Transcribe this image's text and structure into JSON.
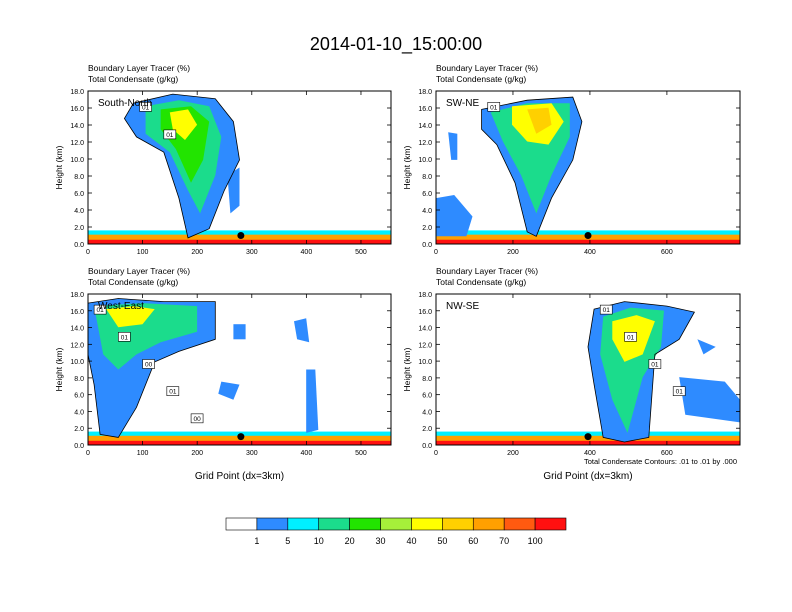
{
  "title": "2014-01-10_15:00:00",
  "colors": {
    "scale": [
      "#ffffff",
      "#2e8bff",
      "#00f0ff",
      "#1bdc8c",
      "#22e400",
      "#a6f03a",
      "#ffff00",
      "#ffd000",
      "#ffa000",
      "#ff5a10",
      "#ff1010"
    ],
    "contour": "#000000"
  },
  "colorbar": {
    "labels": [
      "1",
      "5",
      "10",
      "20",
      "30",
      "40",
      "50",
      "60",
      "70",
      "100"
    ]
  },
  "footnote": "Total Condensate Contours: .01 to .01 by .000",
  "chart_data": [
    {
      "type": "heatmap",
      "cross_section": "South-North",
      "subtitle_1": "Boundary Layer Tracer   (%)",
      "subtitle_2": "Total Condensate   (g/kg)",
      "ylabel": "Height (km)",
      "xlabel": "",
      "xlim": [
        0,
        555
      ],
      "ylim": [
        0,
        18
      ],
      "xticks": [
        0,
        100,
        200,
        300,
        400,
        500
      ],
      "yticks": [
        "0.0",
        "2.0",
        "4.0",
        "6.0",
        "8.0",
        "10.0",
        "12.0",
        "14.0",
        "16.0",
        "18.0"
      ],
      "contour_labels": [
        "01",
        "01"
      ],
      "marker": {
        "x": 280,
        "y": 1.0
      }
    },
    {
      "type": "heatmap",
      "cross_section": "SW-NE",
      "subtitle_1": "Boundary Layer Tracer   (%)",
      "subtitle_2": "Total Condensate   (g/kg)",
      "ylabel": "Height (km)",
      "xlabel": "",
      "xlim": [
        0,
        790
      ],
      "ylim": [
        0,
        18
      ],
      "xticks": [
        0,
        200,
        400,
        600
      ],
      "yticks": [
        "0.0",
        "2.0",
        "4.0",
        "6.0",
        "8.0",
        "10.0",
        "12.0",
        "14.0",
        "16.0",
        "18.0"
      ],
      "contour_labels": [
        "01"
      ],
      "marker": {
        "x": 395,
        "y": 1.0
      }
    },
    {
      "type": "heatmap",
      "cross_section": "West-East",
      "subtitle_1": "Boundary Layer Tracer   (%)",
      "subtitle_2": "Total Condensate   (g/kg)",
      "ylabel": "Height (km)",
      "xlabel": "Grid Point (dx=3km)",
      "xlim": [
        0,
        555
      ],
      "ylim": [
        0,
        18
      ],
      "xticks": [
        0,
        100,
        200,
        300,
        400,
        500
      ],
      "yticks": [
        "0.0",
        "2.0",
        "4.0",
        "6.0",
        "8.0",
        "10.0",
        "12.0",
        "14.0",
        "16.0",
        "18.0"
      ],
      "contour_labels": [
        "01",
        "01",
        "00",
        "01",
        "00"
      ],
      "marker": {
        "x": 280,
        "y": 1.0
      }
    },
    {
      "type": "heatmap",
      "cross_section": "NW-SE",
      "subtitle_1": "Boundary Layer Tracer   (%)",
      "subtitle_2": "Total Condensate   (g/kg)",
      "ylabel": "Height (km)",
      "xlabel": "Grid Point (dx=3km)",
      "xlim": [
        0,
        790
      ],
      "ylim": [
        0,
        18
      ],
      "xticks": [
        0,
        200,
        400,
        600
      ],
      "yticks": [
        "0.0",
        "2.0",
        "4.0",
        "6.0",
        "8.0",
        "10.0",
        "12.0",
        "14.0",
        "16.0",
        "18.0"
      ],
      "contour_labels": [
        "01",
        "01",
        "01",
        "01"
      ],
      "marker": {
        "x": 395,
        "y": 1.0
      }
    }
  ]
}
